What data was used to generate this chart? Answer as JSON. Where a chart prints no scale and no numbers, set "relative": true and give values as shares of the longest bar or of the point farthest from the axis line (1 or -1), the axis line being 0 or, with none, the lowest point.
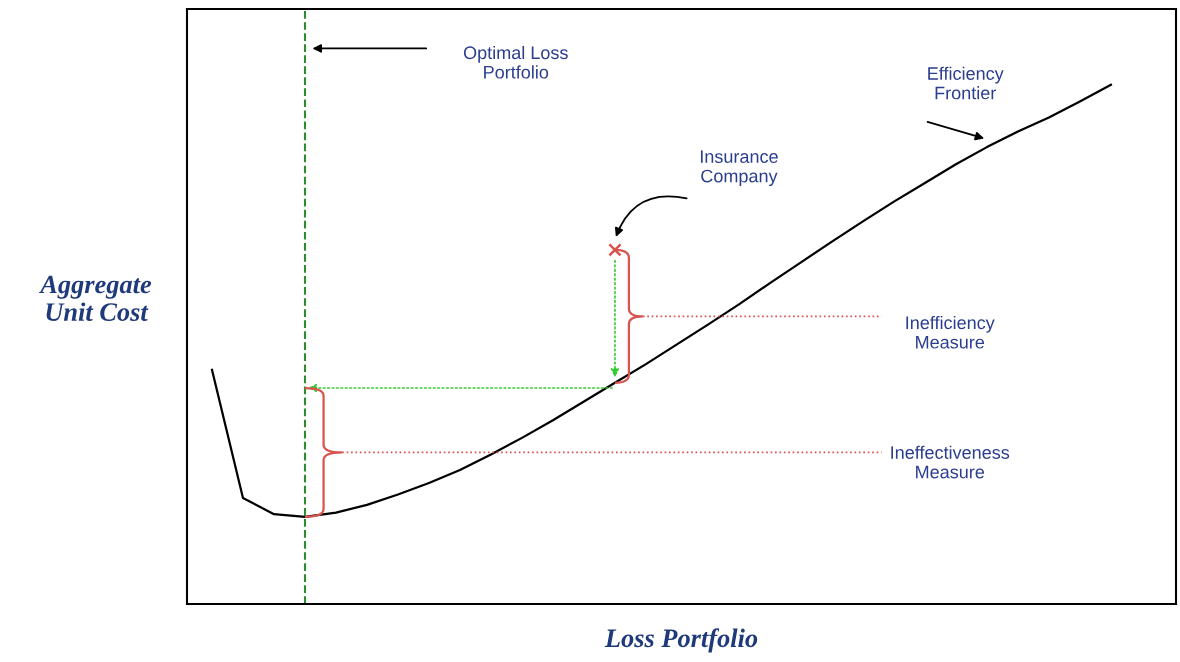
{
  "chart_data": {
    "type": "line",
    "relative": true,
    "xlabel": "Loss Portfolio",
    "ylabel": "Aggregate Unit Cost",
    "categories": [
      null,
      null,
      null,
      null,
      null,
      null,
      null,
      null,
      null,
      null,
      null,
      null,
      null,
      null,
      null,
      null,
      null,
      null,
      null,
      null,
      null,
      null,
      null,
      null,
      null,
      null,
      null,
      null,
      null,
      null
    ],
    "series": [
      {
        "color": "#000000",
        "values": [
          0.451,
          0.204,
          0.173,
          0.168,
          0.176,
          0.191,
          0.211,
          0.233,
          0.258,
          0.288,
          0.32,
          0.354,
          0.39,
          0.426,
          0.462,
          0.5,
          0.538,
          0.577,
          0.618,
          0.658,
          0.698,
          0.737,
          0.775,
          0.811,
          0.847,
          0.88,
          0.91,
          0.937,
          0.968,
          1.0
        ]
      }
    ],
    "marker": "none",
    "line_style": "solid",
    "annotations": [
      {
        "text": "Optimal Loss Portfolio"
      },
      {
        "text": "Efficiency Frontier"
      },
      "Insurance Company",
      {
        "text": "Inefficiency Measure"
      },
      {
        "text": "Ineffectiveness Measure"
      }
    ]
  }
}
